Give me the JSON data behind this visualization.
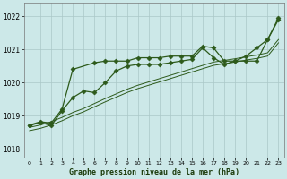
{
  "title": "Graphe pression niveau de la mer (hPa)",
  "bg_color": "#cce8e8",
  "grid_color": "#aac8c8",
  "line_color": "#2d5a1b",
  "ylim": [
    1017.75,
    1022.4
  ],
  "xlim": [
    -0.5,
    23.5
  ],
  "yticks": [
    1018,
    1019,
    1020,
    1021,
    1022
  ],
  "xticks": [
    0,
    1,
    2,
    3,
    4,
    5,
    6,
    7,
    8,
    9,
    10,
    11,
    12,
    13,
    14,
    15,
    16,
    17,
    18,
    19,
    20,
    21,
    22,
    23
  ],
  "series": {
    "line_jagged": {
      "x": [
        0,
        1,
        2,
        3,
        4,
        5,
        6,
        7,
        8,
        9,
        10,
        11,
        12,
        13,
        14,
        15,
        16,
        17,
        18,
        19,
        20,
        21,
        22,
        23
      ],
      "y": [
        1018.7,
        1018.8,
        1018.7,
        1019.15,
        1019.55,
        1019.75,
        1019.7,
        1020.0,
        1020.35,
        1020.5,
        1020.55,
        1020.55,
        1020.55,
        1020.6,
        1020.65,
        1020.7,
        1021.05,
        1020.75,
        1020.55,
        1020.65,
        1020.8,
        1021.05,
        1021.3,
        1021.9
      ],
      "marker": true
    },
    "line_smooth_upper": {
      "x": [
        0,
        1,
        2,
        3,
        4,
        5,
        6,
        7,
        8,
        9,
        10,
        11,
        12,
        13,
        14,
        15,
        16,
        17,
        18,
        19,
        20,
        21,
        22,
        23
      ],
      "y": [
        1018.65,
        1018.72,
        1018.82,
        1018.95,
        1019.1,
        1019.22,
        1019.37,
        1019.52,
        1019.66,
        1019.8,
        1019.92,
        1020.02,
        1020.12,
        1020.22,
        1020.32,
        1020.42,
        1020.52,
        1020.62,
        1020.67,
        1020.72,
        1020.78,
        1020.83,
        1020.9,
        1021.3
      ],
      "marker": false
    },
    "line_smooth_lower": {
      "x": [
        0,
        1,
        2,
        3,
        4,
        5,
        6,
        7,
        8,
        9,
        10,
        11,
        12,
        13,
        14,
        15,
        16,
        17,
        18,
        19,
        20,
        21,
        22,
        23
      ],
      "y": [
        1018.55,
        1018.62,
        1018.72,
        1018.85,
        1019.0,
        1019.12,
        1019.27,
        1019.42,
        1019.56,
        1019.7,
        1019.82,
        1019.92,
        1020.02,
        1020.12,
        1020.22,
        1020.32,
        1020.42,
        1020.52,
        1020.57,
        1020.62,
        1020.68,
        1020.73,
        1020.8,
        1021.2
      ],
      "marker": false
    },
    "line_peak": {
      "x": [
        0,
        1,
        2,
        3,
        4,
        6,
        7,
        8,
        9,
        10,
        11,
        12,
        13,
        14,
        15,
        16,
        17,
        18,
        19,
        20,
        21,
        22,
        23
      ],
      "y": [
        1018.72,
        1018.82,
        1018.78,
        1019.2,
        1020.4,
        1020.6,
        1020.65,
        1020.65,
        1020.65,
        1020.75,
        1020.75,
        1020.75,
        1020.8,
        1020.8,
        1020.8,
        1021.1,
        1021.05,
        1020.65,
        1020.65,
        1020.65,
        1020.65,
        1021.3,
        1021.95
      ],
      "marker": true
    }
  }
}
